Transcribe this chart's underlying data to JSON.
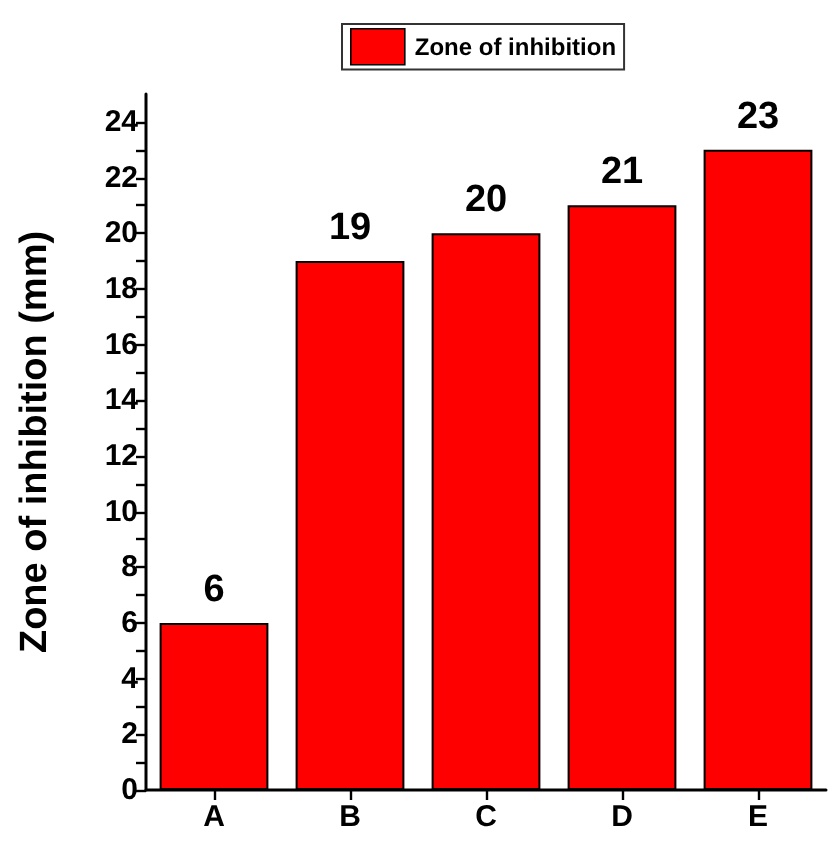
{
  "chart_data": {
    "type": "bar",
    "categories": [
      "A",
      "B",
      "C",
      "D",
      "E"
    ],
    "series": [
      {
        "name": "Zone of inhibition",
        "color": "#ff0000",
        "values": [
          6,
          19,
          20,
          21,
          23
        ]
      }
    ],
    "ylabel": "Zone of inhibition (mm)",
    "ylim": [
      0,
      25
    ],
    "yticks": [
      0,
      {
        "value": 1,
        "label": null
      },
      2,
      {
        "value": 3,
        "label": null
      },
      4,
      {
        "value": 5,
        "label": null
      },
      6,
      {
        "value": 7,
        "label": null
      },
      8,
      {
        "value": 9,
        "label": null
      },
      10,
      {
        "value": 11,
        "label": null
      },
      12,
      {
        "value": 13,
        "label": null
      },
      14,
      {
        "value": 15,
        "label": null
      },
      16,
      {
        "value": 17,
        "label": null
      },
      18,
      {
        "value": 19,
        "label": null
      },
      20,
      {
        "value": 21,
        "label": null
      },
      22,
      {
        "value": 23,
        "label": null
      },
      24
    ],
    "data_labels": true,
    "legend": "top"
  }
}
